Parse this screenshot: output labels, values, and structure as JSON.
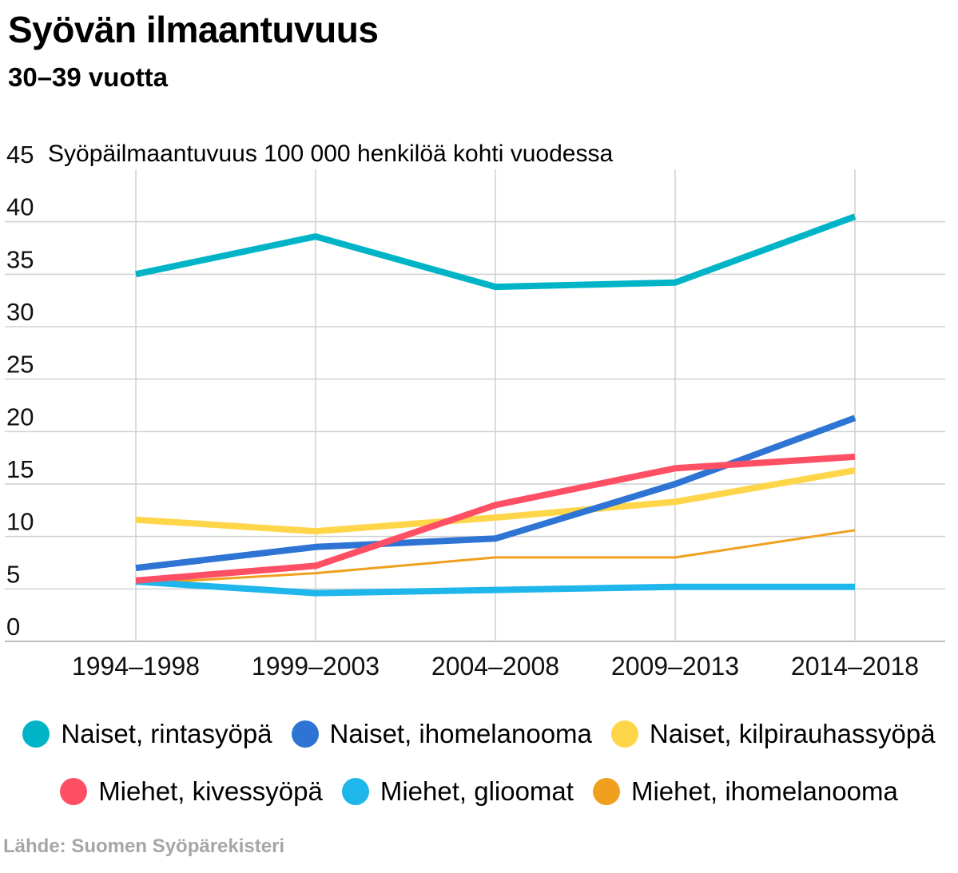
{
  "header": {
    "title": "Syövän ilmaantuvuus",
    "subtitle": "30–39 vuotta"
  },
  "source": "Lähde: Suomen Syöpärekisteri",
  "chart_data": {
    "type": "line",
    "ylabel": "Syöpäilmaantuvuus 100 000 henkilöä kohti vuodessa",
    "ylim": [
      0,
      45
    ],
    "yticks": [
      0,
      5,
      10,
      15,
      20,
      25,
      30,
      35,
      40,
      45
    ],
    "grid": true,
    "legend_position": "bottom",
    "categories": [
      "1994–1998",
      "1999–2003",
      "2004–2008",
      "2009–2013",
      "2014–2018"
    ],
    "series": [
      {
        "name": "Naiset, rintasyöpä",
        "color": "#00b4c8",
        "values": [
          35.0,
          38.6,
          33.8,
          34.2,
          40.5
        ]
      },
      {
        "name": "Naiset, ihomelanooma",
        "color": "#2e74d4",
        "values": [
          7.0,
          9.0,
          9.8,
          15.0,
          21.3
        ]
      },
      {
        "name": "Naiset, kilpirauhassyöpä",
        "color": "#ffd54a",
        "values": [
          11.6,
          10.5,
          11.8,
          13.3,
          16.3
        ]
      },
      {
        "name": "Miehet, kivessyöpä",
        "color": "#ff4f64",
        "values": [
          5.8,
          7.2,
          13.0,
          16.5,
          17.6
        ]
      },
      {
        "name": "Miehet, glioomat",
        "color": "#1fb6ec",
        "values": [
          5.7,
          4.6,
          4.9,
          5.2,
          5.2
        ]
      },
      {
        "name": "Miehet, ihomelanooma",
        "color": "#f0a01e",
        "values": [
          5.5,
          6.5,
          8.0,
          8.0,
          10.6
        ]
      }
    ]
  }
}
